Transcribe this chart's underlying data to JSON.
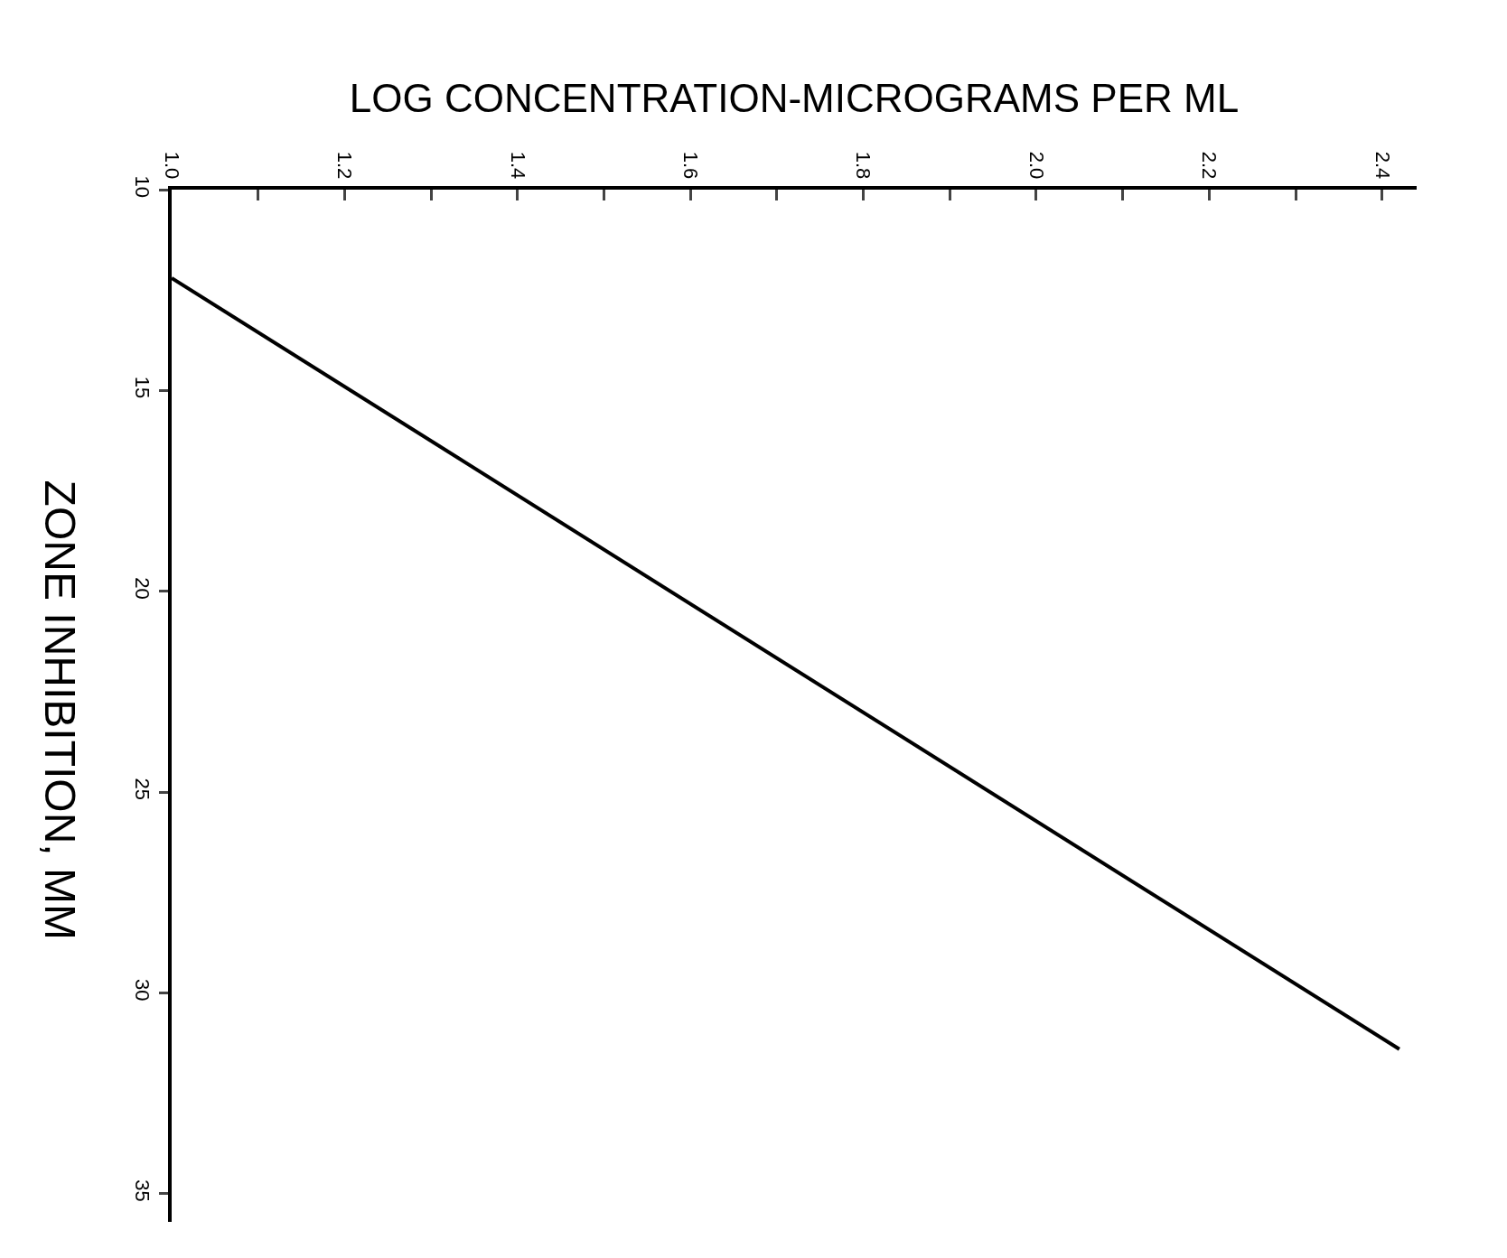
{
  "chart_data": {
    "type": "line",
    "xlabel": "LOG CONCENTRATION-MICROGRAMS PER ML",
    "ylabel": "ZONE INHIBITION, MM",
    "series": [
      {
        "color": "#000000",
        "x": [
          1.0,
          2.42
        ],
        "values": [
          12.2,
          31.4
        ]
      }
    ],
    "xlim": [
      1.0,
      2.44
    ],
    "xticks": [
      {
        "value": 1.0,
        "label": "1.0"
      },
      {
        "value": 1.1,
        "label": null
      },
      1.2,
      {
        "value": 1.3,
        "label": null
      },
      1.4,
      {
        "value": 1.5,
        "label": null
      },
      1.6,
      {
        "value": 1.7,
        "label": null
      },
      1.8,
      {
        "value": 1.9,
        "label": null
      },
      {
        "value": 2.0,
        "label": "2.0"
      },
      {
        "value": 2.1,
        "label": null
      },
      2.2,
      {
        "value": 2.3,
        "label": null
      },
      2.4
    ],
    "ylim": [
      35.7,
      10
    ],
    "yticks": [
      10,
      15,
      20,
      25,
      30,
      35
    ],
    "grid": false,
    "marker": "none",
    "line_style": "solid"
  }
}
